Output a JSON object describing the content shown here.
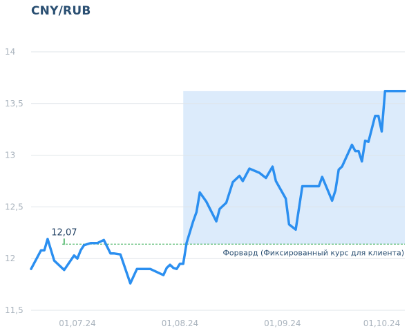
{
  "chart_data": {
    "type": "line",
    "title": "CNY/RUB",
    "xlabel": "",
    "ylabel": "",
    "ylim": [
      11.5,
      14
    ],
    "yticks": [
      "11,5",
      "12",
      "12,5",
      "13",
      "13,5",
      "14"
    ],
    "ytick_values": [
      11.5,
      12,
      12.5,
      13,
      13.5,
      14
    ],
    "xticks": [
      "01,07.24",
      "01,08.24",
      "01,09.24",
      "01,10.24"
    ],
    "xtick_values": [
      "2024-07-01",
      "2024-08-01",
      "2024-09-01",
      "2024-10-01"
    ],
    "x_range": [
      "2024-06-17",
      "2024-10-08"
    ],
    "grid": true,
    "colors": {
      "line": "#2b8ff0",
      "highlight": "#dcebfb",
      "forward": "#2aa84a",
      "grid": "#dfe4e9"
    },
    "series": [
      {
        "x": [
          "2024-06-17",
          "2024-06-20",
          "2024-06-21",
          "2024-06-22",
          "2024-06-24",
          "2024-06-27",
          "2024-06-30",
          "2024-07-01",
          "2024-07-02",
          "2024-07-03",
          "2024-07-05",
          "2024-07-07",
          "2024-07-09",
          "2024-07-11",
          "2024-07-12",
          "2024-07-14",
          "2024-07-17",
          "2024-07-19",
          "2024-07-21",
          "2024-07-23",
          "2024-07-27",
          "2024-07-28",
          "2024-07-29",
          "2024-07-30",
          "2024-07-31",
          "2024-08-01",
          "2024-08-02",
          "2024-08-03",
          "2024-08-05",
          "2024-08-06",
          "2024-08-07",
          "2024-08-09",
          "2024-08-12",
          "2024-08-13",
          "2024-08-15",
          "2024-08-17",
          "2024-08-19",
          "2024-08-20",
          "2024-08-22",
          "2024-08-25",
          "2024-08-27",
          "2024-08-29",
          "2024-08-30",
          "2024-09-02",
          "2024-09-03",
          "2024-09-05",
          "2024-09-06",
          "2024-09-07",
          "2024-09-10",
          "2024-09-11",
          "2024-09-12",
          "2024-09-13",
          "2024-09-16",
          "2024-09-17",
          "2024-09-18",
          "2024-09-19",
          "2024-09-22",
          "2024-09-23",
          "2024-09-24",
          "2024-09-25",
          "2024-09-26",
          "2024-09-27",
          "2024-09-29",
          "2024-09-30",
          "2024-10-01",
          "2024-10-02",
          "2024-10-03",
          "2024-10-05",
          "2024-10-06",
          "2024-10-08"
        ],
        "values": [
          11.9,
          12.08,
          12.08,
          12.19,
          11.98,
          11.89,
          12.03,
          12.0,
          12.08,
          12.13,
          12.15,
          12.15,
          12.18,
          12.05,
          12.05,
          12.04,
          11.76,
          11.9,
          11.9,
          11.9,
          11.84,
          11.91,
          11.94,
          11.91,
          11.9,
          11.95,
          11.95,
          12.15,
          12.36,
          12.45,
          12.64,
          12.55,
          12.36,
          12.48,
          12.54,
          12.74,
          12.8,
          12.75,
          12.87,
          12.83,
          12.78,
          12.89,
          12.75,
          12.58,
          12.33,
          12.28,
          12.49,
          12.7,
          12.7,
          12.7,
          12.7,
          12.79,
          12.56,
          12.66,
          12.86,
          12.89,
          13.1,
          13.04,
          13.04,
          12.94,
          13.14,
          13.13,
          13.38,
          13.38,
          13.23,
          13.62,
          13.62,
          13.62,
          13.62,
          13.62
        ]
      }
    ],
    "annotations": [
      {
        "label": "12,07",
        "x": "2024-06-27",
        "y": 12.07
      },
      {
        "label": "Форвард (Фиксированный курс для клиента)",
        "y": 12.14
      }
    ],
    "highlight_range": {
      "x": [
        "2024-08-02",
        "2024-10-08"
      ],
      "y": [
        12.14,
        13.62
      ]
    }
  }
}
